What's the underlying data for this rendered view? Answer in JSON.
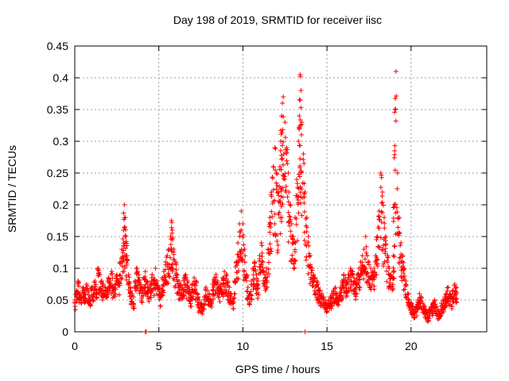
{
  "chart_data": {
    "type": "scatter",
    "title": "Day 198 of 2019, SRMTID for receiver iisc",
    "xlabel": "GPS time / hours",
    "ylabel": "SRMTID / TECUs",
    "xlim": [
      0,
      24.5
    ],
    "ylim": [
      0,
      0.45
    ],
    "grid": true,
    "marker": "plus",
    "color": "#ff0000",
    "x_ticks": [
      0,
      5,
      10,
      15,
      20
    ],
    "x_tick_labels": [
      "0",
      "5",
      "10",
      "15",
      "20"
    ],
    "y_ticks": [
      0,
      0.05,
      0.1,
      0.15,
      0.2,
      0.25,
      0.3,
      0.35,
      0.4,
      0.45
    ],
    "y_tick_labels": [
      "0",
      "0.05",
      "0.1",
      "0.15",
      "0.2",
      "0.25",
      "0.3",
      "0.35",
      "0.4",
      "0.45"
    ],
    "series": [
      {
        "name": "SRMTID",
        "x": [
          0.0,
          0.1,
          0.2,
          0.3,
          0.4,
          0.5,
          0.6,
          0.7,
          0.8,
          0.9,
          1.0,
          1.1,
          1.2,
          1.3,
          1.4,
          1.5,
          1.6,
          1.7,
          1.8,
          1.9,
          2.0,
          2.1,
          2.2,
          2.3,
          2.4,
          2.5,
          2.6,
          2.7,
          2.8,
          2.9,
          2.95,
          3.0,
          3.05,
          3.1,
          3.2,
          3.3,
          3.4,
          3.5,
          3.6,
          3.7,
          3.8,
          3.9,
          4.0,
          4.1,
          4.2,
          4.3,
          4.4,
          4.5,
          4.6,
          4.7,
          4.8,
          4.9,
          5.0,
          5.1,
          5.2,
          5.3,
          5.4,
          5.5,
          5.6,
          5.7,
          5.75,
          5.8,
          5.9,
          6.0,
          6.1,
          6.2,
          6.3,
          6.4,
          6.5,
          6.6,
          6.7,
          6.8,
          6.9,
          7.0,
          7.1,
          7.2,
          7.3,
          7.4,
          7.5,
          7.6,
          7.7,
          7.8,
          7.9,
          8.0,
          8.1,
          8.2,
          8.3,
          8.4,
          8.5,
          8.6,
          8.7,
          8.8,
          8.9,
          9.0,
          9.1,
          9.2,
          9.3,
          9.4,
          9.5,
          9.6,
          9.7,
          9.8,
          9.9,
          10.0,
          10.1,
          10.2,
          10.3,
          10.4,
          10.5,
          10.6,
          10.7,
          10.8,
          10.9,
          11.0,
          11.1,
          11.2,
          11.3,
          11.4,
          11.5,
          11.6,
          11.7,
          11.8,
          11.9,
          12.0,
          12.1,
          12.2,
          12.25,
          12.3,
          12.35,
          12.4,
          12.5,
          12.6,
          12.7,
          12.8,
          12.9,
          13.0,
          13.1,
          13.2,
          13.3,
          13.35,
          13.4,
          13.45,
          13.5,
          13.6,
          13.7,
          13.8,
          13.9,
          14.0,
          14.1,
          14.2,
          14.3,
          14.4,
          14.5,
          14.6,
          14.7,
          14.8,
          14.9,
          15.0,
          15.1,
          15.2,
          15.3,
          15.4,
          15.5,
          15.6,
          15.7,
          15.8,
          15.9,
          16.0,
          16.1,
          16.2,
          16.3,
          16.4,
          16.5,
          16.6,
          16.7,
          16.8,
          16.9,
          17.0,
          17.1,
          17.2,
          17.3,
          17.4,
          17.5,
          17.6,
          17.7,
          17.8,
          17.9,
          18.0,
          18.1,
          18.2,
          18.3,
          18.4,
          18.5,
          18.6,
          18.7,
          18.8,
          18.9,
          18.95,
          19.0,
          19.05,
          19.1,
          19.2,
          19.3,
          19.4,
          19.5,
          19.6,
          19.7,
          19.8,
          19.9,
          20.0,
          20.1,
          20.2,
          20.3,
          20.4,
          20.5,
          20.6,
          20.7,
          20.8,
          20.9,
          21.0,
          21.1,
          21.2,
          21.3,
          21.4,
          21.5,
          21.6,
          21.7,
          21.8,
          21.9,
          22.0,
          22.1,
          22.2,
          22.3,
          22.4,
          22.5,
          22.6,
          22.7
        ],
        "y": [
          0.05,
          0.065,
          0.08,
          0.06,
          0.055,
          0.07,
          0.06,
          0.075,
          0.065,
          0.055,
          0.07,
          0.06,
          0.08,
          0.065,
          0.1,
          0.09,
          0.08,
          0.075,
          0.07,
          0.065,
          0.085,
          0.08,
          0.095,
          0.07,
          0.075,
          0.09,
          0.08,
          0.11,
          0.13,
          0.16,
          0.2,
          0.18,
          0.15,
          0.12,
          0.09,
          0.07,
          0.06,
          0.055,
          0.08,
          0.1,
          0.09,
          0.075,
          0.07,
          0.085,
          0.095,
          0.08,
          0.07,
          0.075,
          0.09,
          0.085,
          0.1,
          0.08,
          0.07,
          0.06,
          0.085,
          0.095,
          0.11,
          0.12,
          0.13,
          0.15,
          0.175,
          0.16,
          0.13,
          0.11,
          0.09,
          0.08,
          0.075,
          0.07,
          0.085,
          0.09,
          0.08,
          0.07,
          0.06,
          0.075,
          0.085,
          0.08,
          0.06,
          0.05,
          0.045,
          0.04,
          0.055,
          0.07,
          0.065,
          0.06,
          0.05,
          0.075,
          0.085,
          0.09,
          0.08,
          0.07,
          0.075,
          0.085,
          0.095,
          0.09,
          0.08,
          0.07,
          0.06,
          0.05,
          0.08,
          0.11,
          0.14,
          0.17,
          0.19,
          0.17,
          0.13,
          0.09,
          0.07,
          0.06,
          0.08,
          0.1,
          0.11,
          0.09,
          0.08,
          0.12,
          0.14,
          0.11,
          0.09,
          0.1,
          0.13,
          0.18,
          0.22,
          0.26,
          0.29,
          0.25,
          0.22,
          0.26,
          0.3,
          0.34,
          0.36,
          0.37,
          0.33,
          0.29,
          0.25,
          0.2,
          0.17,
          0.15,
          0.18,
          0.24,
          0.3,
          0.34,
          0.405,
          0.38,
          0.33,
          0.28,
          0.22,
          0.18,
          0.15,
          0.12,
          0.1,
          0.09,
          0.085,
          0.08,
          0.07,
          0.065,
          0.06,
          0.055,
          0.05,
          0.045,
          0.05,
          0.055,
          0.06,
          0.065,
          0.07,
          0.06,
          0.055,
          0.07,
          0.08,
          0.09,
          0.085,
          0.08,
          0.09,
          0.1,
          0.095,
          0.085,
          0.08,
          0.09,
          0.1,
          0.11,
          0.12,
          0.13,
          0.15,
          0.12,
          0.11,
          0.1,
          0.095,
          0.1,
          0.12,
          0.15,
          0.19,
          0.25,
          0.22,
          0.18,
          0.15,
          0.12,
          0.1,
          0.09,
          0.085,
          0.12,
          0.2,
          0.35,
          0.41,
          0.25,
          0.18,
          0.14,
          0.12,
          0.1,
          0.08,
          0.06,
          0.05,
          0.045,
          0.04,
          0.035,
          0.04,
          0.05,
          0.06,
          0.055,
          0.045,
          0.04,
          0.035,
          0.03,
          0.035,
          0.04,
          0.045,
          0.05,
          0.04,
          0.035,
          0.03,
          0.045,
          0.05,
          0.055,
          0.06,
          0.07,
          0.06,
          0.055,
          0.065,
          0.075,
          0.07
        ],
        "y_low": [
          0.035,
          0.045,
          0.05,
          0.045,
          0.04,
          0.05,
          0.045,
          0.05,
          0.045,
          0.04,
          0.05,
          0.045,
          0.055,
          0.05,
          0.065,
          0.06,
          0.055,
          0.05,
          0.05,
          0.045,
          0.06,
          0.055,
          0.06,
          0.05,
          0.055,
          0.06,
          0.055,
          0.07,
          0.08,
          0.09,
          0.1,
          0.1,
          0.09,
          0.08,
          0.06,
          0.05,
          0.04,
          0.035,
          0.05,
          0.065,
          0.06,
          0.05,
          0.045,
          0.055,
          0.06,
          0.055,
          0.045,
          0.05,
          0.06,
          0.055,
          0.065,
          0.055,
          0.045,
          0.04,
          0.055,
          0.06,
          0.07,
          0.075,
          0.08,
          0.09,
          0.1,
          0.095,
          0.08,
          0.07,
          0.06,
          0.05,
          0.05,
          0.045,
          0.055,
          0.06,
          0.05,
          0.045,
          0.04,
          0.05,
          0.055,
          0.05,
          0.04,
          0.03,
          0.03,
          0.025,
          0.035,
          0.045,
          0.04,
          0.04,
          0.035,
          0.05,
          0.055,
          0.06,
          0.05,
          0.045,
          0.05,
          0.055,
          0.06,
          0.06,
          0.05,
          0.045,
          0.04,
          0.035,
          0.05,
          0.07,
          0.08,
          0.1,
          0.11,
          0.1,
          0.08,
          0.06,
          0.045,
          0.04,
          0.05,
          0.065,
          0.07,
          0.06,
          0.05,
          0.075,
          0.085,
          0.07,
          0.06,
          0.065,
          0.08,
          0.1,
          0.12,
          0.14,
          0.15,
          0.14,
          0.12,
          0.14,
          0.16,
          0.18,
          0.19,
          0.2,
          0.18,
          0.16,
          0.14,
          0.12,
          0.1,
          0.09,
          0.1,
          0.13,
          0.16,
          0.18,
          0.2,
          0.2,
          0.18,
          0.16,
          0.13,
          0.11,
          0.09,
          0.075,
          0.065,
          0.06,
          0.055,
          0.05,
          0.045,
          0.04,
          0.04,
          0.035,
          0.035,
          0.03,
          0.035,
          0.035,
          0.04,
          0.045,
          0.045,
          0.04,
          0.035,
          0.045,
          0.05,
          0.06,
          0.055,
          0.05,
          0.06,
          0.065,
          0.06,
          0.055,
          0.05,
          0.06,
          0.065,
          0.07,
          0.075,
          0.08,
          0.09,
          0.075,
          0.07,
          0.065,
          0.06,
          0.065,
          0.075,
          0.09,
          0.11,
          0.13,
          0.12,
          0.1,
          0.09,
          0.075,
          0.065,
          0.06,
          0.055,
          0.07,
          0.11,
          0.15,
          0.16,
          0.13,
          0.1,
          0.085,
          0.075,
          0.065,
          0.05,
          0.04,
          0.035,
          0.03,
          0.025,
          0.02,
          0.025,
          0.03,
          0.035,
          0.03,
          0.025,
          0.025,
          0.02,
          0.015,
          0.02,
          0.025,
          0.025,
          0.03,
          0.025,
          0.02,
          0.02,
          0.025,
          0.03,
          0.035,
          0.04,
          0.045,
          0.04,
          0.035,
          0.04,
          0.05,
          0.045
        ],
        "outliers_x": [
          4.2,
          4.25,
          13.7
        ],
        "outliers_y": [
          0.0,
          0.0,
          0.0
        ]
      }
    ]
  }
}
